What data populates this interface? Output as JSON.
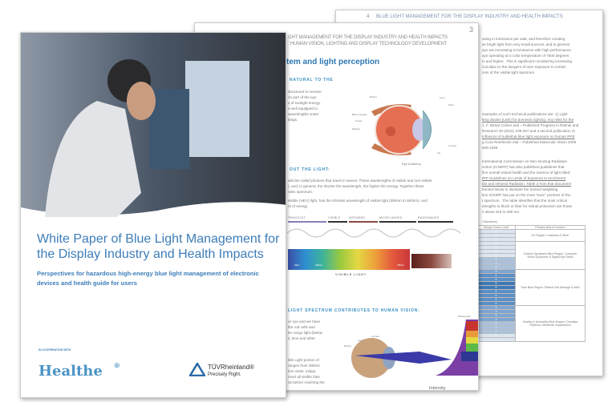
{
  "back_page": {
    "page_number": "4",
    "header": "BLUE LIGHT MANAGEMENT FOR THE DISPLAY INDUSTRY AND HEALTH IMPACTS",
    "para1": [
      "asing in luminance per watt, and therefore creating",
      "se bright light from very small sources, and in general",
      "ays are increasing in luminance with high performance",
      "ays operating at a color temperature of 7500 degrees",
      "in and higher.  This is significant considering increasing",
      "ical data on the dangers of over exposure to certain",
      "ions of the visible light spectrum."
    ],
    "para2": [
      "examples of such technical publications are: 1) Light",
      "tting diodes (LED) for domestic lighting: Any risks for the",
      "2. F. Behar-Cohen etal – Published Progress in Retinal and",
      "Research 30 (2011) 239-257 and a second publication 2)",
      "Influence of sublethal blue light exposure on human RPE",
      "g Cora Roehlecke etal – Published Molecular Vision 2009",
      "929-1938"
    ],
    "para3": [
      "International Commission on Non-Ionizing Radiation",
      "ection (ICNIRP) has also published guidelines that",
      "fine overall retinal health and the science of light titled:",
      "IRP Guidelines on Limits of Exposure to Incoherent",
      "ble and Infrared Radiation. Table 2 from that document",
      "tracted below to illustrate the hazard weighting",
      "tion ICNIRP has put on the most \"toxic\" portions of the",
      "t spectrum.  The table identifies that the most critical",
      "elengths to block or filter for retinal protection are those",
      "n about 415 to 460 nm."
    ],
    "table": {
      "caption": "l Standards)",
      "col1": "Danger Zones Level",
      "col2": "Primary area of concern",
      "levels": [
        "1",
        "1",
        "1",
        "1",
        "1",
        "1",
        "1",
        "2",
        "2",
        "2",
        "3",
        "4",
        "4",
        "5",
        "5",
        "4",
        "4",
        "4",
        "4",
        "3",
        "3",
        "3",
        "3",
        "2",
        "2",
        "2",
        "1",
        "1"
      ],
      "groups": [
        {
          "label": "UV Region: Cataracts & Other",
          "rows": 3
        },
        {
          "label": "Surface Symptoms Blue Region: Computer Vision Syndrome & Digital Eye Strain",
          "rows": 7
        },
        {
          "label": "Toxic Blue Region: Retinal Cell Damage & AMD",
          "rows": 9
        },
        {
          "label": "Healthy & Unhealthy Blue Region: Circadian Rhythms, Melatonin Suppression",
          "rows": 9
        }
      ]
    }
  },
  "mid_page": {
    "page_number": "3",
    "header_line1": "GHT MANAGEMENT FOR THE DISPLAY INDUSTRY AND HEALTH IMPACTS",
    "header_line2": ": HUMAN VISION, LIGHTING AND DISPLAY TECHNOLOGY DEVELOPMENT",
    "section_title": "tem and light perception",
    "sub1": "NATURAL TO THE",
    "para1": [
      "structured to receive",
      "ch part of the eye",
      "s of sunlight energy.",
      "e well equipped to",
      "wavelengths under",
      "ttings."
    ],
    "eye_labels": {
      "retina": "Retina",
      "blood": "Blood vessels",
      "fovea": "Fovea",
      "macula": "Macula",
      "lens": "Lens",
      "pupil": "Pupil",
      "cornea": "Cornea",
      "iris": "Iris",
      "caption": "Eye Anatomy"
    },
    "sub2": "OUT THE LIGHT:",
    "para2": [
      "articles called photons that travel in waves. These wavelengths of visible and non-visible",
      "), and, in general, the shorter the wavelength, the higher the energy. Together these",
      "netic spectrum."
    ],
    "para3": [
      "visible (HEV) light, has the shortest wavelength of visible light (380nm to 500nm), and",
      "nt of energy."
    ],
    "spectrum_bands": [
      "TRAVIOLET",
      "VISIBLE",
      "INFRARED",
      "MICRO-WAVES",
      "RADIOWAVES"
    ],
    "spectrum_ticks": [
      "HEV",
      "400nm",
      "780nm"
    ],
    "spectrum_caption": "VISIBLE LIGHT",
    "sub3": "LIGHT SPECTRUM CONTRIBUTES TO HUMAN VISION:",
    "para4": [
      "ur eye and we have",
      "the rod cells and",
      "ter range light (below",
      "s, lens and other"
    ],
    "para5": [
      "ible Light portion of",
      "ranges from 380nm",
      "lors violet, indigo,",
      "most all visible blue",
      "ns before reaching the"
    ],
    "vision_labels": {
      "retina": "Retina",
      "lens": "Lens",
      "cornea": "Cornea",
      "wavelength": "Wavelength",
      "intensity": "Intensity"
    }
  },
  "cover": {
    "title": "White Paper of Blue Light Management for the Display Industry and Health Impacts",
    "subtitle": "Perspectives for hazardous high-energy blue light management of electronic devices and health guide for users",
    "cooperation": "IN COOPERATION WITH",
    "logo_healthe": "Healthe",
    "logo_tuv": "TÜVRheinland®",
    "tuv_tagline": "Precisely Right.",
    "title_color": "#3d7db8"
  }
}
